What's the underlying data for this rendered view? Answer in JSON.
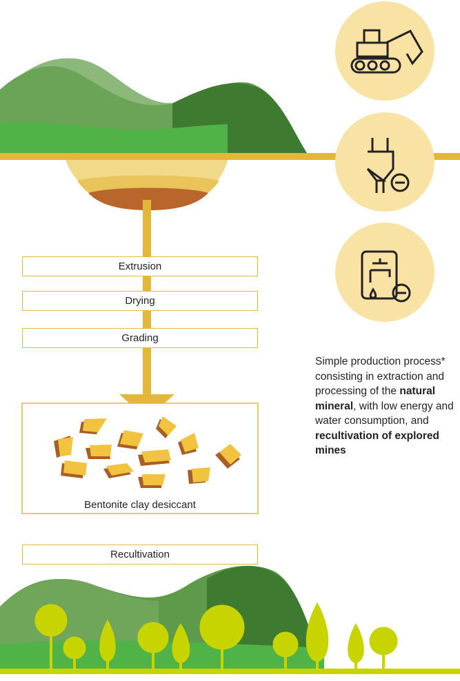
{
  "steps": [
    "Extrusion",
    "Drying",
    "Grading"
  ],
  "product": "Bentonite clay desiccant",
  "recultivation": "Recultivation",
  "description": [
    {
      "text": "Simple production process* consisting in extraction and processing of the ",
      "bold": false
    },
    {
      "text": "natural mineral",
      "bold": true
    },
    {
      "text": ", with low energy and water consumption, and ",
      "bold": false
    },
    {
      "text": "recultivation of explored mines",
      "bold": true
    }
  ]
}
